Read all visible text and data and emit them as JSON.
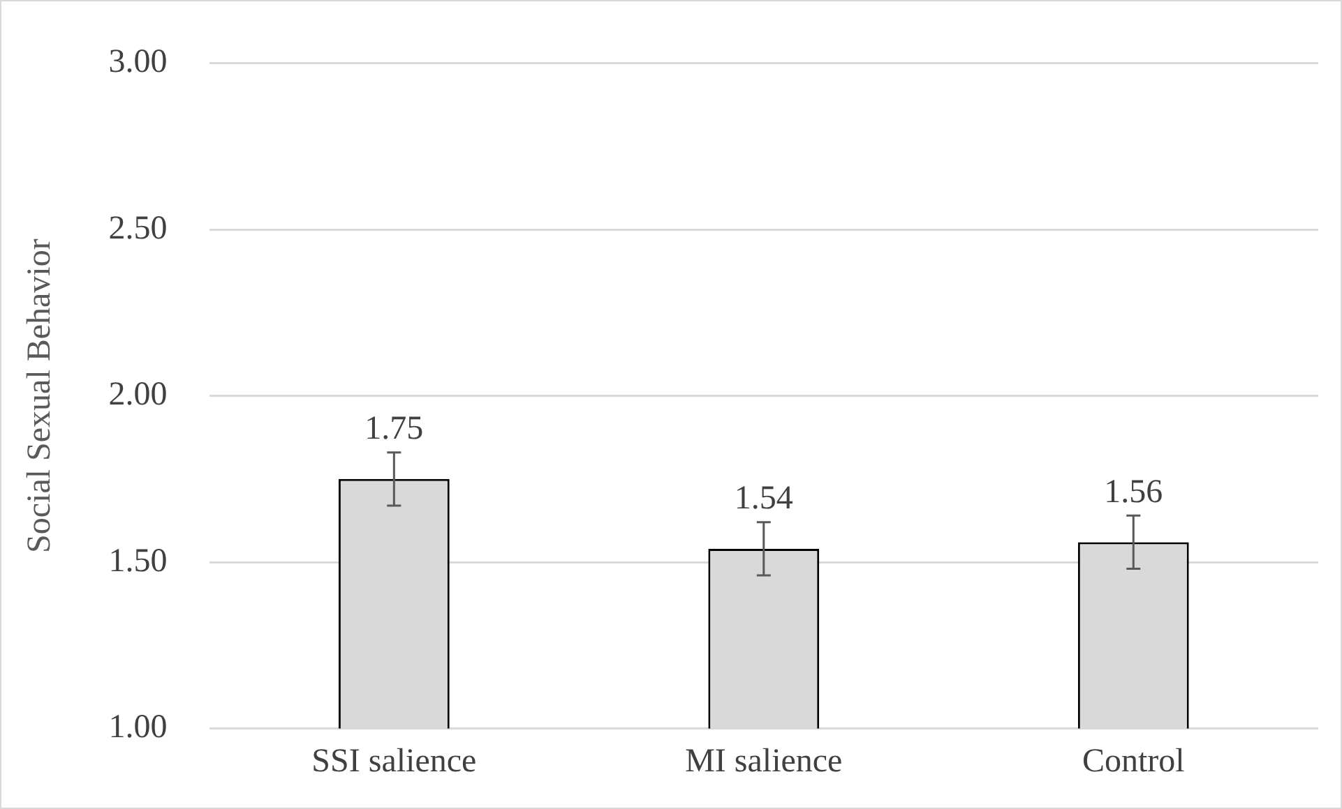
{
  "chart_data": {
    "type": "bar",
    "ylabel": "Social Sexual Behavior",
    "categories": [
      "SSI salience",
      "MI salience",
      "Control"
    ],
    "series": [
      {
        "color": "#d9d9d9",
        "values": [
          1.75,
          1.54,
          1.56
        ],
        "errors": [
          0.08,
          0.08,
          0.08
        ]
      }
    ],
    "data_labels": true,
    "ylim": [
      1,
      3
    ],
    "yticks": [
      {
        "value": 1,
        "label": "1.00"
      },
      {
        "value": 1.5,
        "label": "1.50"
      },
      {
        "value": 2,
        "label": "2.00"
      },
      {
        "value": 2.5,
        "label": "2.50"
      },
      {
        "value": 3,
        "label": "3.00"
      }
    ],
    "grid": "y",
    "legend": false
  }
}
